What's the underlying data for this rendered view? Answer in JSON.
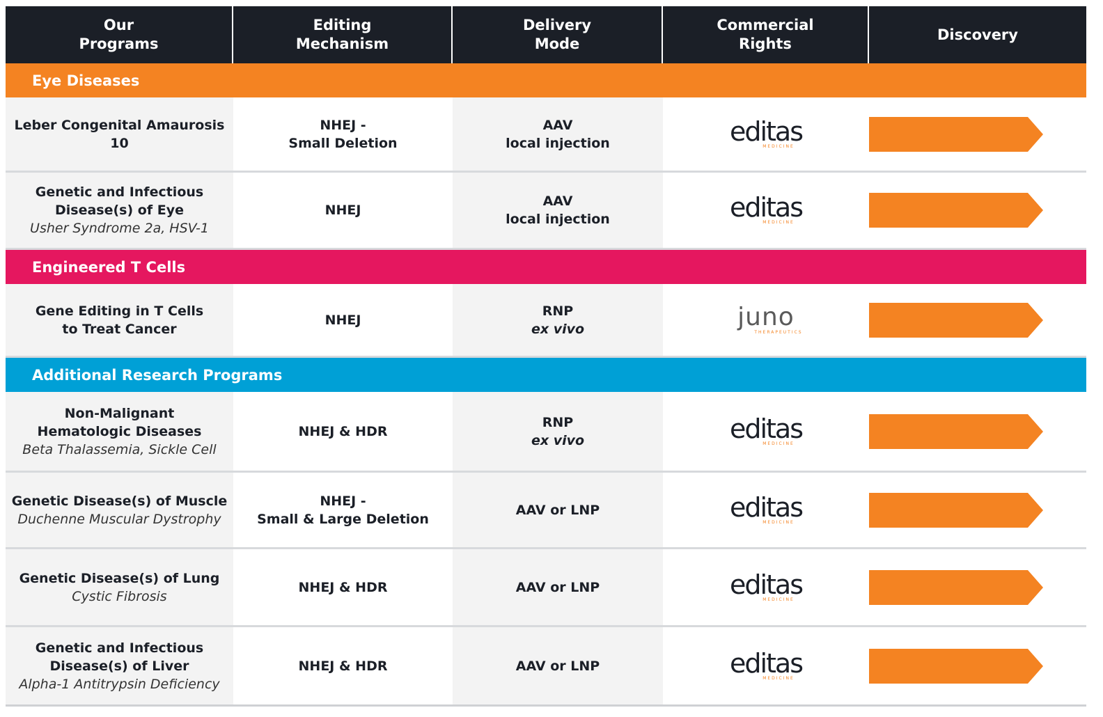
{
  "header": {
    "col1": "Our\nPrograms",
    "col2": "Editing\nMechanism",
    "col3": "Delivery\nMode",
    "col4": "Commercial\nRights",
    "col5": "Discovery"
  },
  "colors": {
    "header_bg": "#1b1f27",
    "eye": "#f48322",
    "tcell": "#e5175f",
    "research": "#00a0d6",
    "arrow": "#f48322"
  },
  "chart_data": {
    "type": "table",
    "columns": [
      "Our Programs",
      "Editing Mechanism",
      "Delivery Mode",
      "Commercial Rights",
      "Discovery"
    ],
    "stage_shown": "Discovery",
    "sections": [
      {
        "name": "Eye Diseases",
        "rows": [
          {
            "program": "Leber Congenital Amaurosis 10",
            "subtitle": "",
            "mechanism": "NHEJ -\nSmall Deletion",
            "delivery": "AAV",
            "delivery2": "local injection",
            "rights": "editas",
            "progress": 1
          },
          {
            "program": "Genetic and Infectious\nDisease(s) of Eye",
            "subtitle": "Usher Syndrome 2a, HSV-1",
            "mechanism": "NHEJ",
            "delivery": "AAV",
            "delivery2": "local injection",
            "rights": "editas",
            "progress": 1
          }
        ]
      },
      {
        "name": "Engineered T Cells",
        "rows": [
          {
            "program": "Gene Editing in T Cells\nto Treat Cancer",
            "subtitle": "",
            "mechanism": "NHEJ",
            "delivery": "RNP",
            "delivery2": "ex vivo",
            "rights": "juno",
            "progress": 1
          }
        ]
      },
      {
        "name": "Additional Research Programs",
        "rows": [
          {
            "program": "Non-Malignant\nHematologic Diseases",
            "subtitle": "Beta Thalassemia, Sickle Cell",
            "mechanism": "NHEJ & HDR",
            "delivery": "RNP",
            "delivery2": "ex vivo",
            "rights": "editas",
            "progress": 1
          },
          {
            "program": "Genetic Disease(s) of Muscle",
            "subtitle": "Duchenne Muscular Dystrophy",
            "mechanism": "NHEJ -\nSmall  & Large Deletion",
            "delivery": "AAV or LNP",
            "delivery2": "",
            "rights": "editas",
            "progress": 1
          },
          {
            "program": "Genetic Disease(s) of Lung",
            "subtitle": "Cystic Fibrosis",
            "mechanism": "NHEJ & HDR",
            "delivery": "AAV or LNP",
            "delivery2": "",
            "rights": "editas",
            "progress": 1
          },
          {
            "program": "Genetic and Infectious\nDisease(s) of Liver",
            "subtitle": "Alpha-1 Antitrypsin Deficiency",
            "mechanism": "NHEJ & HDR",
            "delivery": "AAV or LNP",
            "delivery2": "",
            "rights": "editas",
            "progress": 1
          }
        ]
      }
    ]
  },
  "logos": {
    "editas": {
      "word": "editas",
      "sub": "MEDICINE",
      "icon": "editas-logo"
    },
    "juno": {
      "word": "JUNO",
      "sub": "THERAPEUTICS",
      "icon": "juno-logo"
    }
  }
}
